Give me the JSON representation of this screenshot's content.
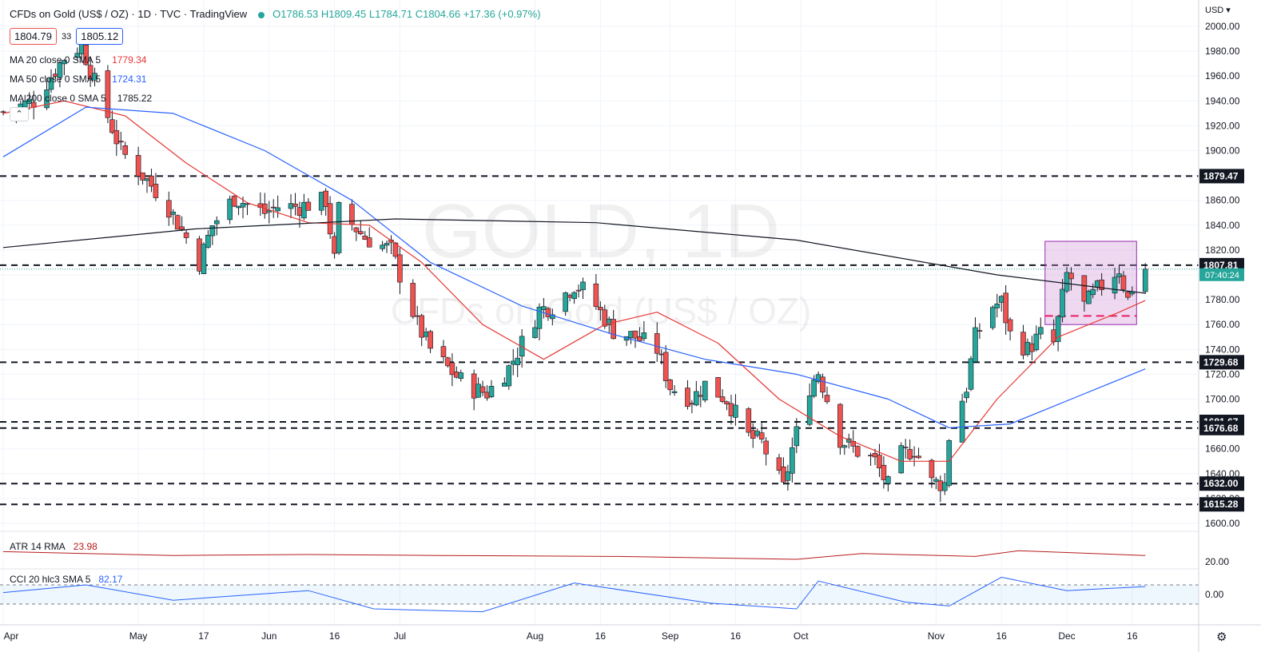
{
  "header": {
    "title": "CFDs on Gold (US$ / OZ) · 1D · TVC · TradingView",
    "ohlc": "O1786.53 H1809.45 L1784.71 C1804.66 +17.36 (+0.97%)"
  },
  "price_boxes": {
    "sell": "1804.79",
    "spread": "33",
    "buy": "1805.12"
  },
  "moving_averages": [
    {
      "name": "MA 20 close 0 SMA 5",
      "value": "1779.34",
      "color": "#e53935"
    },
    {
      "name": "MA 50 close 0 SMA 5",
      "value": "1724.31",
      "color": "#2962ff"
    },
    {
      "name": "MA 200 close 0 SMA 5",
      "value": "1785.22",
      "color": "#131722"
    }
  ],
  "indicators": {
    "atr": {
      "name": "ATR 14 RMA",
      "value": "23.98",
      "color": "#b71c1c",
      "axis_label": "20.00"
    },
    "cci": {
      "name": "CCI 20 hlc3 SMA 5",
      "value": "82.17",
      "color": "#2962ff",
      "axis_label": "0.00"
    }
  },
  "axis": {
    "currency": "USD",
    "countdown": "07:40:24"
  },
  "watermark": {
    "symbol": "GOLD, 1D",
    "description": "CFDs on Gold (US$ / OZ)"
  },
  "chart_data": {
    "type": "candlestick",
    "y_axis_ticks": [
      1600,
      1620,
      1640,
      1660,
      1680,
      1700,
      1720,
      1740,
      1760,
      1780,
      1800,
      1820,
      1840,
      1860,
      1880,
      1900,
      1920,
      1940,
      1960,
      1980,
      2000
    ],
    "ylim": [
      1588,
      2010
    ],
    "x_axis_labels": [
      "Apr",
      "May",
      "17",
      "Jun",
      "16",
      "Jul",
      "Aug",
      "16",
      "Sep",
      "16",
      "Oct",
      "Nov",
      "16",
      "Dec",
      "16"
    ],
    "horizontal_levels": [
      {
        "value": 1879.47,
        "label": "1879.47"
      },
      {
        "value": 1807.81,
        "label": "1807.81"
      },
      {
        "value": 1729.68,
        "label": "1729.68"
      },
      {
        "value": 1681.67,
        "label": "1681.67"
      },
      {
        "value": 1676.68,
        "label": "1676.68"
      },
      {
        "value": 1632.0,
        "label": "1632.00"
      },
      {
        "value": 1615.28,
        "label": "1615.28"
      }
    ],
    "last_price": {
      "value": 1804.66,
      "label": "1804.66"
    },
    "consolidation_box": {
      "from_date": "Nov 26",
      "to_date": "Dec 17",
      "low": 1760,
      "high": 1827
    },
    "support_dash": {
      "from_date": "Nov 26",
      "to_date": "Dec 17",
      "value": 1767
    },
    "close_path": [
      [
        "Apr 1",
        1931
      ],
      [
        "Apr 8",
        1940
      ],
      [
        "Apr 15",
        1975
      ],
      [
        "Apr 19",
        1985
      ],
      [
        "Apr 22",
        1955
      ],
      [
        "Apr 28",
        1900
      ],
      [
        "May 3",
        1880
      ],
      [
        "May 8",
        1860
      ],
      [
        "May 13",
        1830
      ],
      [
        "May 16",
        1810
      ],
      [
        "May 19",
        1840
      ],
      [
        "May 24",
        1862
      ],
      [
        "May 31",
        1850
      ],
      [
        "Jun 3",
        1855
      ],
      [
        "Jun 8",
        1855
      ],
      [
        "Jun 14",
        1860
      ],
      [
        "Jun 16",
        1812
      ],
      [
        "Jun 17",
        1852
      ],
      [
        "Jun 23",
        1830
      ],
      [
        "Jun 29",
        1820
      ],
      [
        "Jul 1",
        1800
      ],
      [
        "Jul 5",
        1760
      ],
      [
        "Jul 8",
        1740
      ],
      [
        "Jul 12",
        1725
      ],
      [
        "Jul 15",
        1715
      ],
      [
        "Jul 18",
        1708
      ],
      [
        "Jul 21",
        1705
      ],
      [
        "Jul 26",
        1725
      ],
      [
        "Jul 29",
        1745
      ],
      [
        "Aug 2",
        1772
      ],
      [
        "Aug 5",
        1775
      ],
      [
        "Aug 10",
        1792
      ],
      [
        "Aug 12",
        1788
      ],
      [
        "Aug 15",
        1775
      ],
      [
        "Aug 19",
        1755
      ],
      [
        "Aug 24",
        1750
      ],
      [
        "Aug 29",
        1740
      ],
      [
        "Sep 1",
        1710
      ],
      [
        "Sep 6",
        1700
      ],
      [
        "Sep 9",
        1712
      ],
      [
        "Sep 14",
        1700
      ],
      [
        "Sep 19",
        1670
      ],
      [
        "Sep 22",
        1665
      ],
      [
        "Sep 27",
        1628
      ],
      [
        "Sep 29",
        1660
      ],
      [
        "Oct 3",
        1710
      ],
      [
        "Oct 5",
        1722
      ],
      [
        "Oct 10",
        1668
      ],
      [
        "Oct 13",
        1660
      ],
      [
        "Oct 18",
        1650
      ],
      [
        "Oct 21",
        1630
      ],
      [
        "Oct 24",
        1655
      ],
      [
        "Oct 27",
        1660
      ],
      [
        "Oct 31",
        1633
      ],
      [
        "Nov 3",
        1632
      ],
      [
        "Nov 4",
        1670
      ],
      [
        "Nov 8",
        1710
      ],
      [
        "Nov 10",
        1750
      ],
      [
        "Nov 14",
        1775
      ],
      [
        "Nov 16",
        1778
      ],
      [
        "Nov 18",
        1752
      ],
      [
        "Nov 22",
        1740
      ],
      [
        "Nov 25",
        1752
      ],
      [
        "Nov 28",
        1745
      ],
      [
        "Dec 1",
        1800
      ],
      [
        "Dec 2",
        1797
      ],
      [
        "Dec 5",
        1775
      ],
      [
        "Dec 8",
        1788
      ],
      [
        "Dec 13",
        1805
      ],
      [
        "Dec 15",
        1780
      ],
      [
        "Dec 16",
        1790
      ],
      [
        "Dec 19",
        1804.66
      ]
    ],
    "series": [
      {
        "name": "MA 20 close 0 SMA 5",
        "points": [
          [
            "Apr 1",
            1930
          ],
          [
            "Apr 15",
            1940
          ],
          [
            "Apr 29",
            1928
          ],
          [
            "May 13",
            1890
          ],
          [
            "May 27",
            1858
          ],
          [
            "Jun 10",
            1842
          ],
          [
            "Jun 24",
            1840
          ],
          [
            "Jul 6",
            1810
          ],
          [
            "Jul 20",
            1760
          ],
          [
            "Aug 3",
            1732
          ],
          [
            "Aug 17",
            1760
          ],
          [
            "Aug 29",
            1770
          ],
          [
            "Sep 12",
            1745
          ],
          [
            "Sep 26",
            1700
          ],
          [
            "Oct 10",
            1670
          ],
          [
            "Oct 24",
            1650
          ],
          [
            "Nov 4",
            1650
          ],
          [
            "Nov 15",
            1700
          ],
          [
            "Nov 29",
            1750
          ],
          [
            "Dec 13",
            1770
          ],
          [
            "Dec 19",
            1779.34
          ]
        ]
      },
      {
        "name": "MA 50 close 0 SMA 5",
        "points": [
          [
            "Apr 1",
            1895
          ],
          [
            "Apr 20",
            1935
          ],
          [
            "May 10",
            1930
          ],
          [
            "May 31",
            1900
          ],
          [
            "Jun 20",
            1860
          ],
          [
            "Jul 8",
            1810
          ],
          [
            "Jul 29",
            1775
          ],
          [
            "Aug 19",
            1752
          ],
          [
            "Sep 9",
            1732
          ],
          [
            "Sep 30",
            1720
          ],
          [
            "Oct 21",
            1700
          ],
          [
            "Nov 4",
            1677
          ],
          [
            "Nov 18",
            1680
          ],
          [
            "Dec 2",
            1700
          ],
          [
            "Dec 19",
            1724.31
          ]
        ]
      },
      {
        "name": "MA 200 close 0 SMA 5",
        "points": [
          [
            "Apr 1",
            1822
          ],
          [
            "May 15",
            1837
          ],
          [
            "Jun 30",
            1845
          ],
          [
            "Aug 15",
            1842
          ],
          [
            "Sep 30",
            1828
          ],
          [
            "Nov 15",
            1800
          ],
          [
            "Dec 19",
            1785.22
          ]
        ]
      }
    ],
    "atr_series": [
      [
        "Apr 1",
        28
      ],
      [
        "May 10",
        24
      ],
      [
        "Jun 10",
        25
      ],
      [
        "Jul 10",
        24
      ],
      [
        "Aug 20",
        23
      ],
      [
        "Sep 30",
        20
      ],
      [
        "Oct 15",
        26
      ],
      [
        "Nov 10",
        23
      ],
      [
        "Nov 20",
        29
      ],
      [
        "Dec 19",
        23.98
      ]
    ],
    "cci_series": [
      [
        "Apr 1",
        20
      ],
      [
        "Apr 20",
        100
      ],
      [
        "May 10",
        -60
      ],
      [
        "Jun 10",
        40
      ],
      [
        "Jun 25",
        -150
      ],
      [
        "Jul 20",
        -180
      ],
      [
        "Aug 10",
        120
      ],
      [
        "Sep 10",
        -90
      ],
      [
        "Sep 30",
        -150
      ],
      [
        "Oct 5",
        140
      ],
      [
        "Oct 25",
        -80
      ],
      [
        "Nov 4",
        -120
      ],
      [
        "Nov 16",
        180
      ],
      [
        "Dec 1",
        40
      ],
      [
        "Dec 19",
        82.17
      ]
    ]
  }
}
